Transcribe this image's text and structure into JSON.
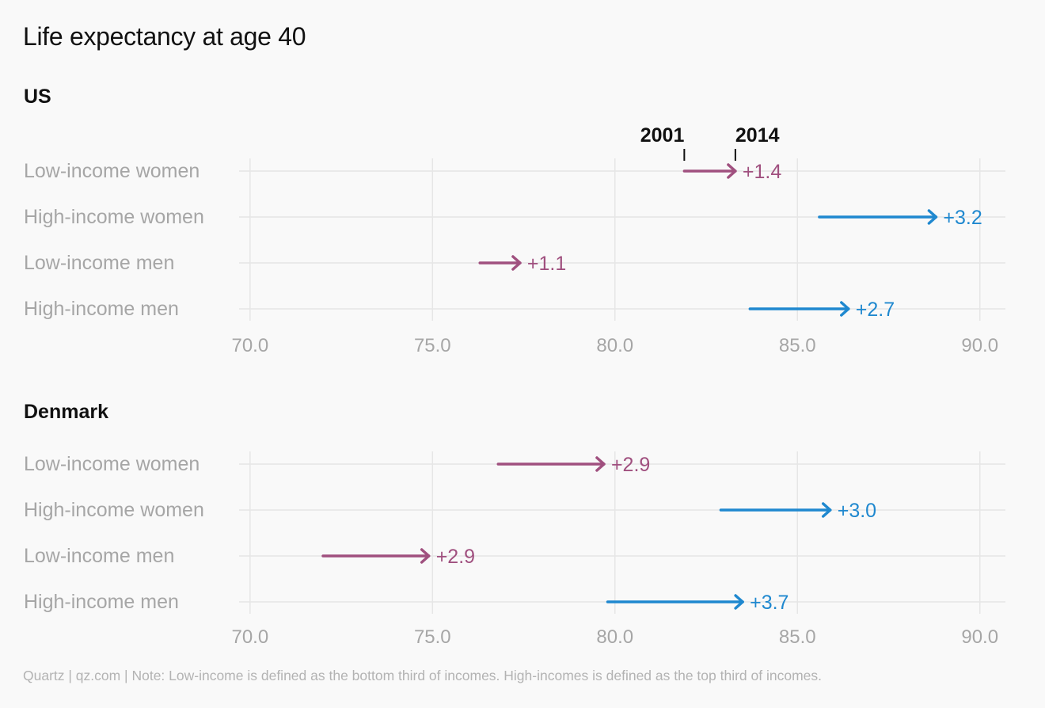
{
  "title": "Life expectancy at age 40",
  "footer": "Quartz | qz.com | Note: Low-income is defined as the bottom third of incomes. High-incomes is defined as the top third of incomes.",
  "colors": {
    "low": "#a0507f",
    "high": "#1f88cf",
    "label": "#a6a6a6",
    "grid": "#e6e6e6",
    "tick": "#a6a6a6"
  },
  "chart_data": [
    {
      "type": "arrow-dot",
      "title": "US",
      "year_labels": [
        "2001",
        "2014"
      ],
      "xlim": [
        69.7,
        90.7
      ],
      "xticks": [
        "70.0",
        "75.0",
        "80.0",
        "85.0",
        "90.0"
      ],
      "tick_values": [
        70,
        75,
        80,
        85,
        90
      ],
      "rows": [
        {
          "label": "Low-income women",
          "group": "low",
          "start": 81.9,
          "end": 83.3,
          "change": "+1.4"
        },
        {
          "label": "High-income women",
          "group": "high",
          "start": 85.6,
          "end": 88.8,
          "change": "+3.2"
        },
        {
          "label": "Low-income men",
          "group": "low",
          "start": 76.3,
          "end": 77.4,
          "change": "+1.1"
        },
        {
          "label": "High-income men",
          "group": "high",
          "start": 83.7,
          "end": 86.4,
          "change": "+2.7"
        }
      ]
    },
    {
      "type": "arrow-dot",
      "title": "Denmark",
      "xlim": [
        69.7,
        90.7
      ],
      "xticks": [
        "70.0",
        "75.0",
        "80.0",
        "85.0",
        "90.0"
      ],
      "tick_values": [
        70,
        75,
        80,
        85,
        90
      ],
      "rows": [
        {
          "label": "Low-income women",
          "group": "low",
          "start": 76.8,
          "end": 79.7,
          "change": "+2.9"
        },
        {
          "label": "High-income women",
          "group": "high",
          "start": 82.9,
          "end": 85.9,
          "change": "+3.0"
        },
        {
          "label": "Low-income men",
          "group": "low",
          "start": 72.0,
          "end": 74.9,
          "change": "+2.9"
        },
        {
          "label": "High-income men",
          "group": "high",
          "start": 79.8,
          "end": 83.5,
          "change": "+3.7"
        }
      ]
    }
  ]
}
